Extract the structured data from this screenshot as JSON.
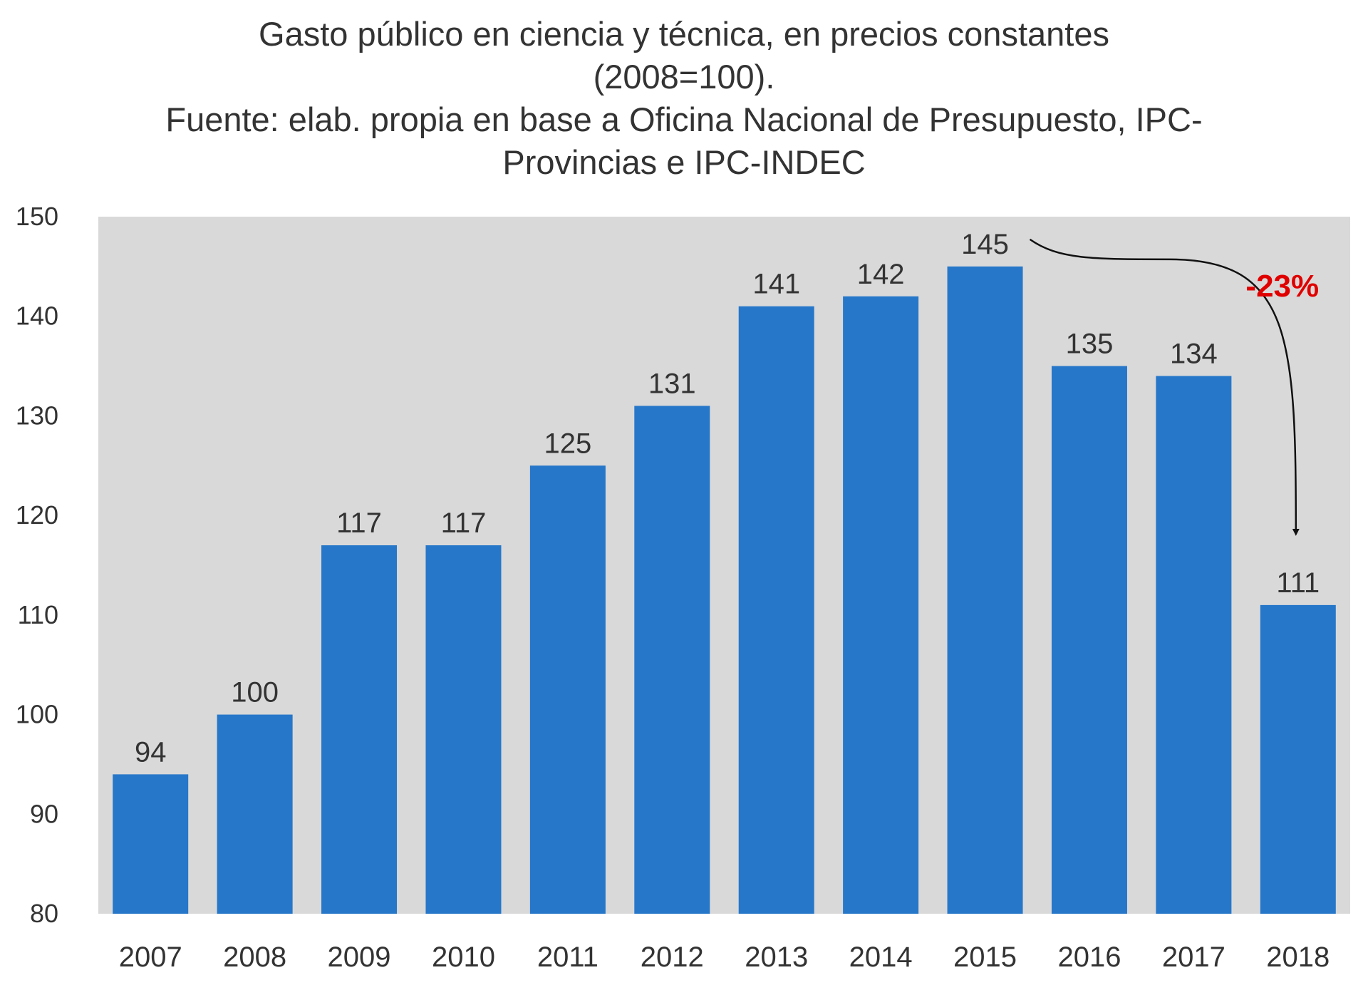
{
  "chart_data": {
    "type": "bar",
    "title_lines": [
      "Gasto público en ciencia y técnica, en precios constantes",
      "(2008=100).",
      "Fuente: elab. propia en base a Oficina Nacional de Presupuesto, IPC-",
      "Provincias e IPC-INDEC"
    ],
    "categories": [
      "2007",
      "2008",
      "2009",
      "2010",
      "2011",
      "2012",
      "2013",
      "2014",
      "2015",
      "2016",
      "2017",
      "2018"
    ],
    "values": [
      94,
      100,
      117,
      117,
      125,
      131,
      141,
      142,
      145,
      135,
      134,
      111
    ],
    "data_labels": [
      "94",
      "100",
      "117",
      "117",
      "125",
      "131",
      "141",
      "142",
      "145",
      "135",
      "134",
      "111"
    ],
    "yticks": [
      "80",
      "90",
      "100",
      "110",
      "120",
      "130",
      "140",
      "150"
    ],
    "ylim": [
      80,
      150
    ],
    "grid": false,
    "annotation": {
      "text": "-23%",
      "from": "2015",
      "to": "2018"
    },
    "colors": {
      "bar": "#2677c9",
      "plot_background": "#d9d9d9",
      "annotation": "#e00000"
    }
  }
}
